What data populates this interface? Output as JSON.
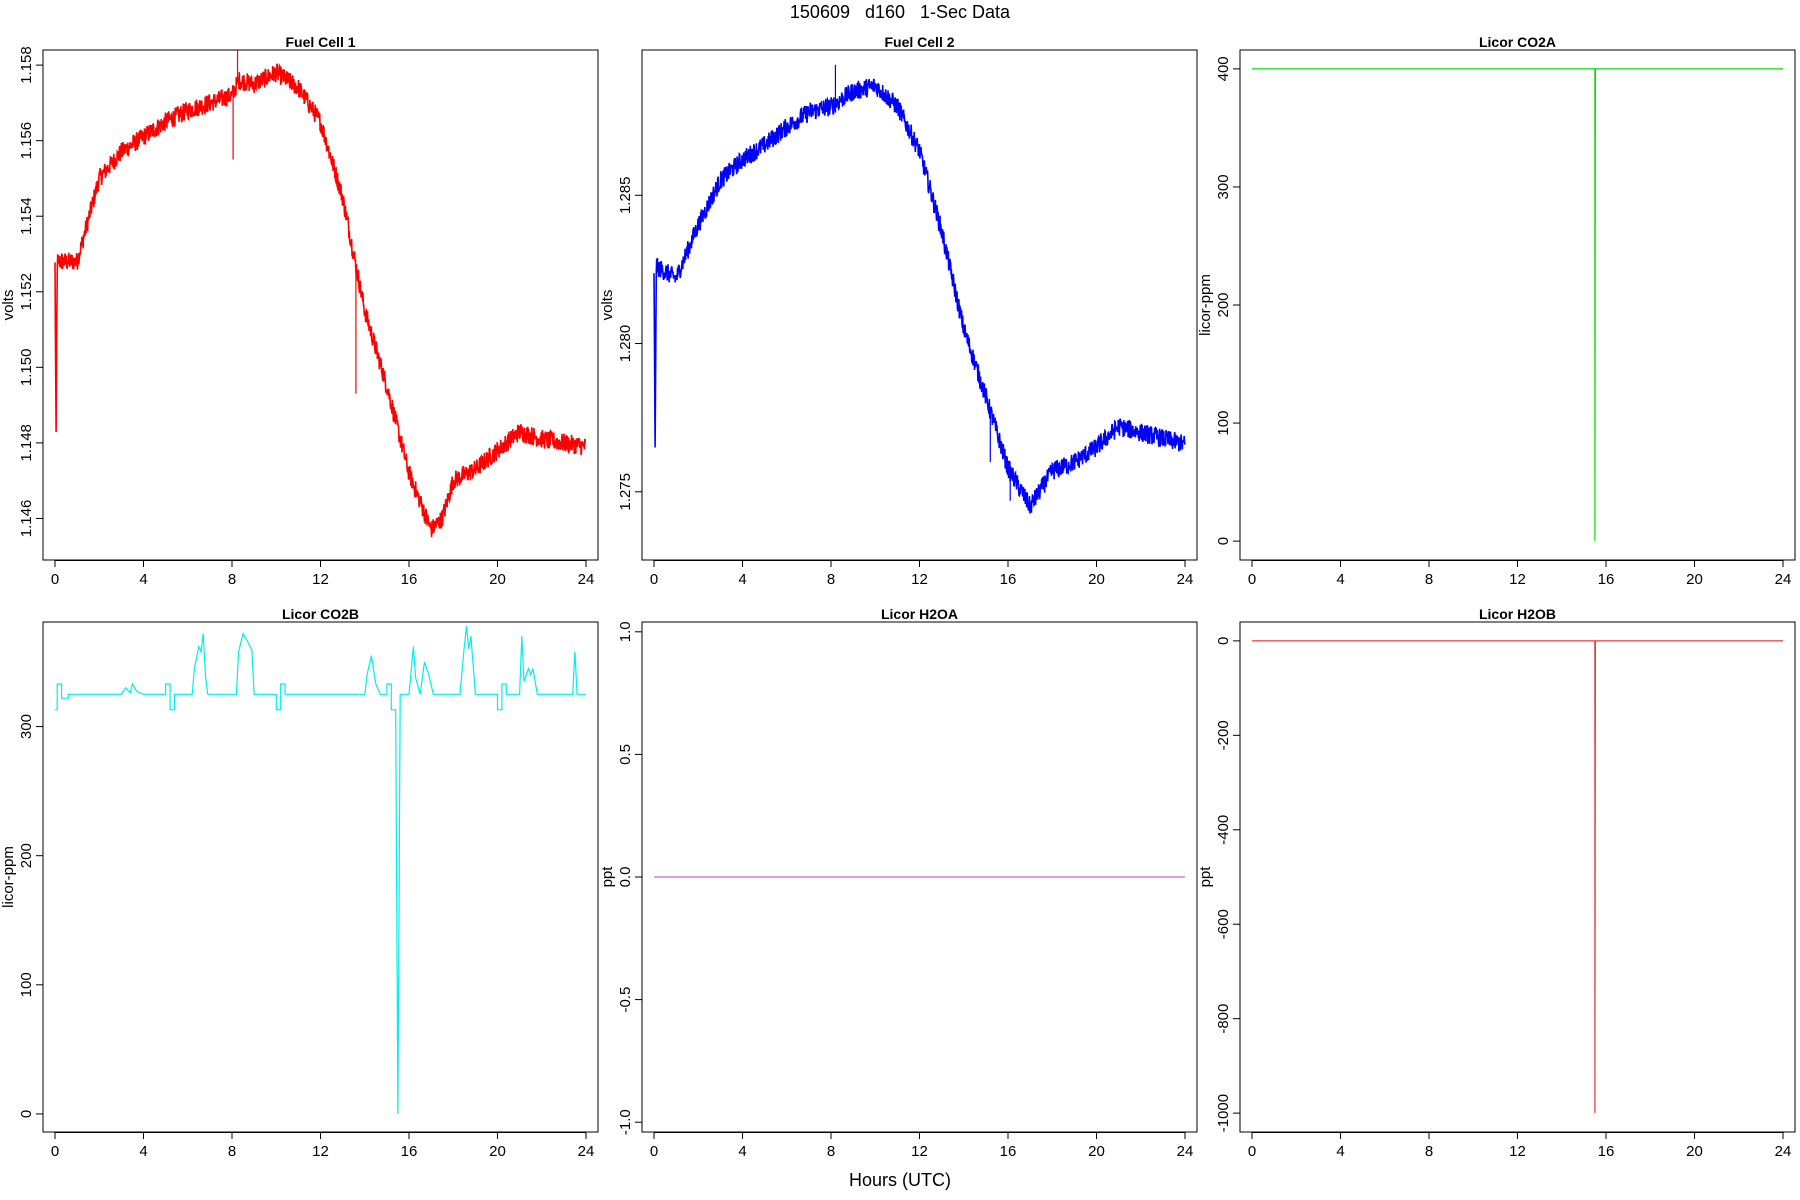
{
  "figure": {
    "title": "150609   d160   1-Sec Data",
    "xlabel": "Hours (UTC)"
  },
  "chart_data": [
    {
      "type": "line",
      "title": "Fuel Cell 1",
      "ylabel": "volts",
      "color": "#ff0000",
      "xlim": [
        0,
        24
      ],
      "xticks": [
        0,
        4,
        8,
        12,
        16,
        20,
        24
      ],
      "xtick_labels": [
        "0",
        "4",
        "8",
        "12",
        "16",
        "20",
        "24"
      ],
      "ylim": [
        1.1449,
        1.1584
      ],
      "yticks": [
        1.146,
        1.148,
        1.15,
        1.152,
        1.154,
        1.156,
        1.158
      ],
      "ytick_labels": [
        "1.146",
        "1.148",
        "1.150",
        "1.152",
        "1.154",
        "1.156",
        "1.158"
      ],
      "noise": 0.00025,
      "points": [
        [
          0,
          1.1527
        ],
        [
          0.05,
          1.1479
        ],
        [
          0.1,
          1.1528
        ],
        [
          1,
          1.1528
        ],
        [
          2,
          1.155
        ],
        [
          3,
          1.1557
        ],
        [
          4,
          1.1561
        ],
        [
          5,
          1.1565
        ],
        [
          6,
          1.1568
        ],
        [
          7,
          1.157
        ],
        [
          8,
          1.1572
        ],
        [
          8.3,
          1.1576
        ],
        [
          9,
          1.1575
        ],
        [
          10,
          1.1578
        ],
        [
          11,
          1.1574
        ],
        [
          12,
          1.1565
        ],
        [
          13,
          1.1545
        ],
        [
          14,
          1.1515
        ],
        [
          15,
          1.1495
        ],
        [
          16,
          1.1472
        ],
        [
          17,
          1.1457
        ],
        [
          17.5,
          1.146
        ],
        [
          18,
          1.147
        ],
        [
          19,
          1.1473
        ],
        [
          20,
          1.1478
        ],
        [
          21,
          1.1483
        ],
        [
          22,
          1.1481
        ],
        [
          23,
          1.148
        ],
        [
          24,
          1.1479
        ]
      ],
      "spikes": [
        [
          0.05,
          1.1479
        ],
        [
          8.05,
          1.1555
        ],
        [
          8.25,
          1.1584
        ],
        [
          13.6,
          1.1493
        ],
        [
          14.4,
          1.1507
        ]
      ]
    },
    {
      "type": "line",
      "title": "Fuel Cell 2",
      "ylabel": "volts",
      "color": "#0000ff",
      "xlim": [
        0,
        24
      ],
      "xticks": [
        0,
        4,
        8,
        12,
        16,
        20,
        24
      ],
      "xtick_labels": [
        "0",
        "4",
        "8",
        "12",
        "16",
        "20",
        "24"
      ],
      "ylim": [
        1.2727,
        1.2899
      ],
      "yticks": [
        1.275,
        1.28,
        1.285
      ],
      "ytick_labels": [
        "1.275",
        "1.280",
        "1.285"
      ],
      "noise": 0.00032,
      "points": [
        [
          0,
          1.2825
        ],
        [
          0.05,
          1.2761
        ],
        [
          0.1,
          1.2826
        ],
        [
          1,
          1.2822
        ],
        [
          2,
          1.284
        ],
        [
          3,
          1.2855
        ],
        [
          4,
          1.2862
        ],
        [
          5,
          1.2867
        ],
        [
          6,
          1.2873
        ],
        [
          7,
          1.2878
        ],
        [
          8,
          1.288
        ],
        [
          9,
          1.2885
        ],
        [
          10,
          1.2887
        ],
        [
          11,
          1.288
        ],
        [
          12,
          1.2865
        ],
        [
          13,
          1.2838
        ],
        [
          14,
          1.2805
        ],
        [
          15,
          1.2782
        ],
        [
          16,
          1.2758
        ],
        [
          17,
          1.2745
        ],
        [
          18,
          1.2757
        ],
        [
          19,
          1.276
        ],
        [
          20,
          1.2765
        ],
        [
          21,
          1.2772
        ],
        [
          22,
          1.277
        ],
        [
          23,
          1.2768
        ],
        [
          24,
          1.2766
        ]
      ],
      "spikes": [
        [
          0.05,
          1.2761
        ],
        [
          8.2,
          1.2894
        ],
        [
          15.2,
          1.276
        ],
        [
          16.1,
          1.2747
        ]
      ]
    },
    {
      "type": "line",
      "title": "Licor CO2A",
      "ylabel": "licor-ppm",
      "color": "#00dd00",
      "xlim": [
        0,
        24
      ],
      "xticks": [
        0,
        4,
        8,
        12,
        16,
        20,
        24
      ],
      "xtick_labels": [
        "0",
        "4",
        "8",
        "12",
        "16",
        "20",
        "24"
      ],
      "ylim": [
        -16,
        416
      ],
      "yticks": [
        0,
        100,
        200,
        300,
        400
      ],
      "ytick_labels": [
        "0",
        "100",
        "200",
        "300",
        "400"
      ],
      "noise": 0,
      "points": [
        [
          0,
          400
        ],
        [
          15.5,
          400
        ],
        [
          15.5,
          0
        ],
        [
          15.52,
          400
        ],
        [
          24,
          400
        ]
      ],
      "spikes": []
    },
    {
      "type": "line",
      "title": "Licor CO2B",
      "ylabel": "licor-ppm",
      "color": "#00eeee",
      "xlim": [
        0,
        24
      ],
      "xticks": [
        0,
        4,
        8,
        12,
        16,
        20,
        24
      ],
      "xtick_labels": [
        "0",
        "4",
        "8",
        "12",
        "16",
        "20",
        "24"
      ],
      "ylim": [
        -14,
        381
      ],
      "yticks": [
        0,
        100,
        200,
        300
      ],
      "ytick_labels": [
        "0",
        "100",
        "200",
        "300"
      ],
      "noise": 0,
      "points": [
        [
          0,
          313
        ],
        [
          0.1,
          313
        ],
        [
          0.1,
          333
        ],
        [
          0.3,
          333
        ],
        [
          0.3,
          322
        ],
        [
          0.6,
          322
        ],
        [
          0.6,
          325
        ],
        [
          3.0,
          325
        ],
        [
          3.2,
          330
        ],
        [
          3.4,
          326
        ],
        [
          3.5,
          333
        ],
        [
          3.7,
          327
        ],
        [
          4.0,
          325
        ],
        [
          5.0,
          325
        ],
        [
          5.0,
          333
        ],
        [
          5.2,
          333
        ],
        [
          5.2,
          313
        ],
        [
          5.4,
          313
        ],
        [
          5.4,
          325
        ],
        [
          6.2,
          325
        ],
        [
          6.3,
          345
        ],
        [
          6.5,
          362
        ],
        [
          6.6,
          358
        ],
        [
          6.7,
          372
        ],
        [
          6.8,
          340
        ],
        [
          6.9,
          325
        ],
        [
          8.2,
          325
        ],
        [
          8.3,
          358
        ],
        [
          8.5,
          372
        ],
        [
          8.7,
          366
        ],
        [
          8.9,
          359
        ],
        [
          9.0,
          325
        ],
        [
          10.0,
          325
        ],
        [
          10.0,
          313
        ],
        [
          10.2,
          313
        ],
        [
          10.2,
          333
        ],
        [
          10.4,
          333
        ],
        [
          10.4,
          325
        ],
        [
          14.0,
          325
        ],
        [
          14.1,
          340
        ],
        [
          14.3,
          355
        ],
        [
          14.5,
          333
        ],
        [
          14.7,
          325
        ],
        [
          15.0,
          325
        ],
        [
          15.0,
          333
        ],
        [
          15.2,
          333
        ],
        [
          15.2,
          313
        ],
        [
          15.4,
          313
        ],
        [
          15.5,
          0
        ],
        [
          15.6,
          325
        ],
        [
          16.0,
          325
        ],
        [
          16.2,
          362
        ],
        [
          16.3,
          338
        ],
        [
          16.5,
          325
        ],
        [
          16.7,
          350
        ],
        [
          16.9,
          340
        ],
        [
          17.1,
          325
        ],
        [
          18.3,
          325
        ],
        [
          18.5,
          362
        ],
        [
          18.6,
          378
        ],
        [
          18.7,
          360
        ],
        [
          18.8,
          370
        ],
        [
          19.0,
          325
        ],
        [
          20.0,
          325
        ],
        [
          20.0,
          313
        ],
        [
          20.2,
          313
        ],
        [
          20.2,
          333
        ],
        [
          20.4,
          333
        ],
        [
          20.4,
          325
        ],
        [
          21.0,
          325
        ],
        [
          21.1,
          370
        ],
        [
          21.2,
          335
        ],
        [
          21.4,
          345
        ],
        [
          21.5,
          340
        ],
        [
          21.6,
          345
        ],
        [
          21.8,
          325
        ],
        [
          23.4,
          325
        ],
        [
          23.5,
          358
        ],
        [
          23.6,
          325
        ],
        [
          24,
          325
        ]
      ],
      "spikes": []
    },
    {
      "type": "line",
      "title": "Licor H2OA",
      "ylabel": "ppt",
      "color": "#cc66cc",
      "xlim": [
        0,
        24
      ],
      "xticks": [
        0,
        4,
        8,
        12,
        16,
        20,
        24
      ],
      "xtick_labels": [
        "0",
        "4",
        "8",
        "12",
        "16",
        "20",
        "24"
      ],
      "ylim": [
        -1.04,
        1.04
      ],
      "yticks": [
        -1.0,
        -0.5,
        0.0,
        0.5,
        1.0
      ],
      "ytick_labels": [
        "-1.0",
        "-0.5",
        "0.0",
        "0.5",
        "1.0"
      ],
      "noise": 0,
      "points": [
        [
          0,
          0
        ],
        [
          24,
          0
        ]
      ],
      "spikes": []
    },
    {
      "type": "line",
      "title": "Licor H2OB",
      "ylabel": "ppt",
      "color": "#ee3333",
      "xlim": [
        0,
        24
      ],
      "xticks": [
        0,
        4,
        8,
        12,
        16,
        20,
        24
      ],
      "xtick_labels": [
        "0",
        "4",
        "8",
        "12",
        "16",
        "20",
        "24"
      ],
      "ylim": [
        -1040,
        40
      ],
      "yticks": [
        -1000,
        -800,
        -600,
        -400,
        -200,
        0
      ],
      "ytick_labels": [
        "-1000",
        "-800",
        "-600",
        "-400",
        "-200",
        "0"
      ],
      "noise": 0,
      "points": [
        [
          0,
          0
        ],
        [
          15.5,
          0
        ],
        [
          15.5,
          -1000
        ],
        [
          15.52,
          0
        ],
        [
          24,
          0
        ]
      ],
      "spikes": []
    }
  ]
}
